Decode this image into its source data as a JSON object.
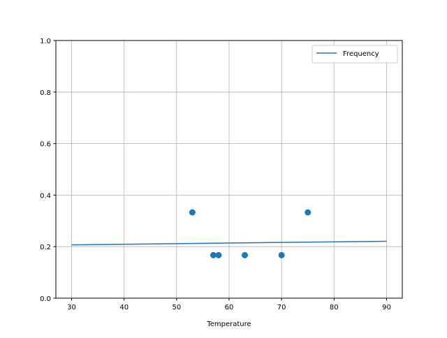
{
  "chart_data": {
    "type": "scatter",
    "title": "",
    "xlabel": "Temperature",
    "ylabel": "",
    "xlim": [
      27,
      93
    ],
    "ylim": [
      0,
      1.0
    ],
    "xticks": [
      30,
      40,
      50,
      60,
      70,
      80,
      90
    ],
    "yticks": [
      0.0,
      0.2,
      0.4,
      0.6,
      0.8,
      1.0
    ],
    "xtick_labels": [
      "30",
      "40",
      "50",
      "60",
      "70",
      "80",
      "90"
    ],
    "ytick_labels": [
      "0.0",
      "0.2",
      "0.4",
      "0.6",
      "0.8",
      "1.0"
    ],
    "grid": true,
    "legend_position": "top-right",
    "color": "#1f77b4",
    "series": [
      {
        "name": "Frequency",
        "kind": "line",
        "x": [
          30,
          90
        ],
        "y": [
          0.207,
          0.221
        ]
      },
      {
        "kind": "scatter",
        "x": [
          53,
          57,
          58,
          63,
          70,
          75
        ],
        "y": [
          0.333,
          0.167,
          0.167,
          0.167,
          0.167,
          0.333
        ]
      }
    ]
  }
}
